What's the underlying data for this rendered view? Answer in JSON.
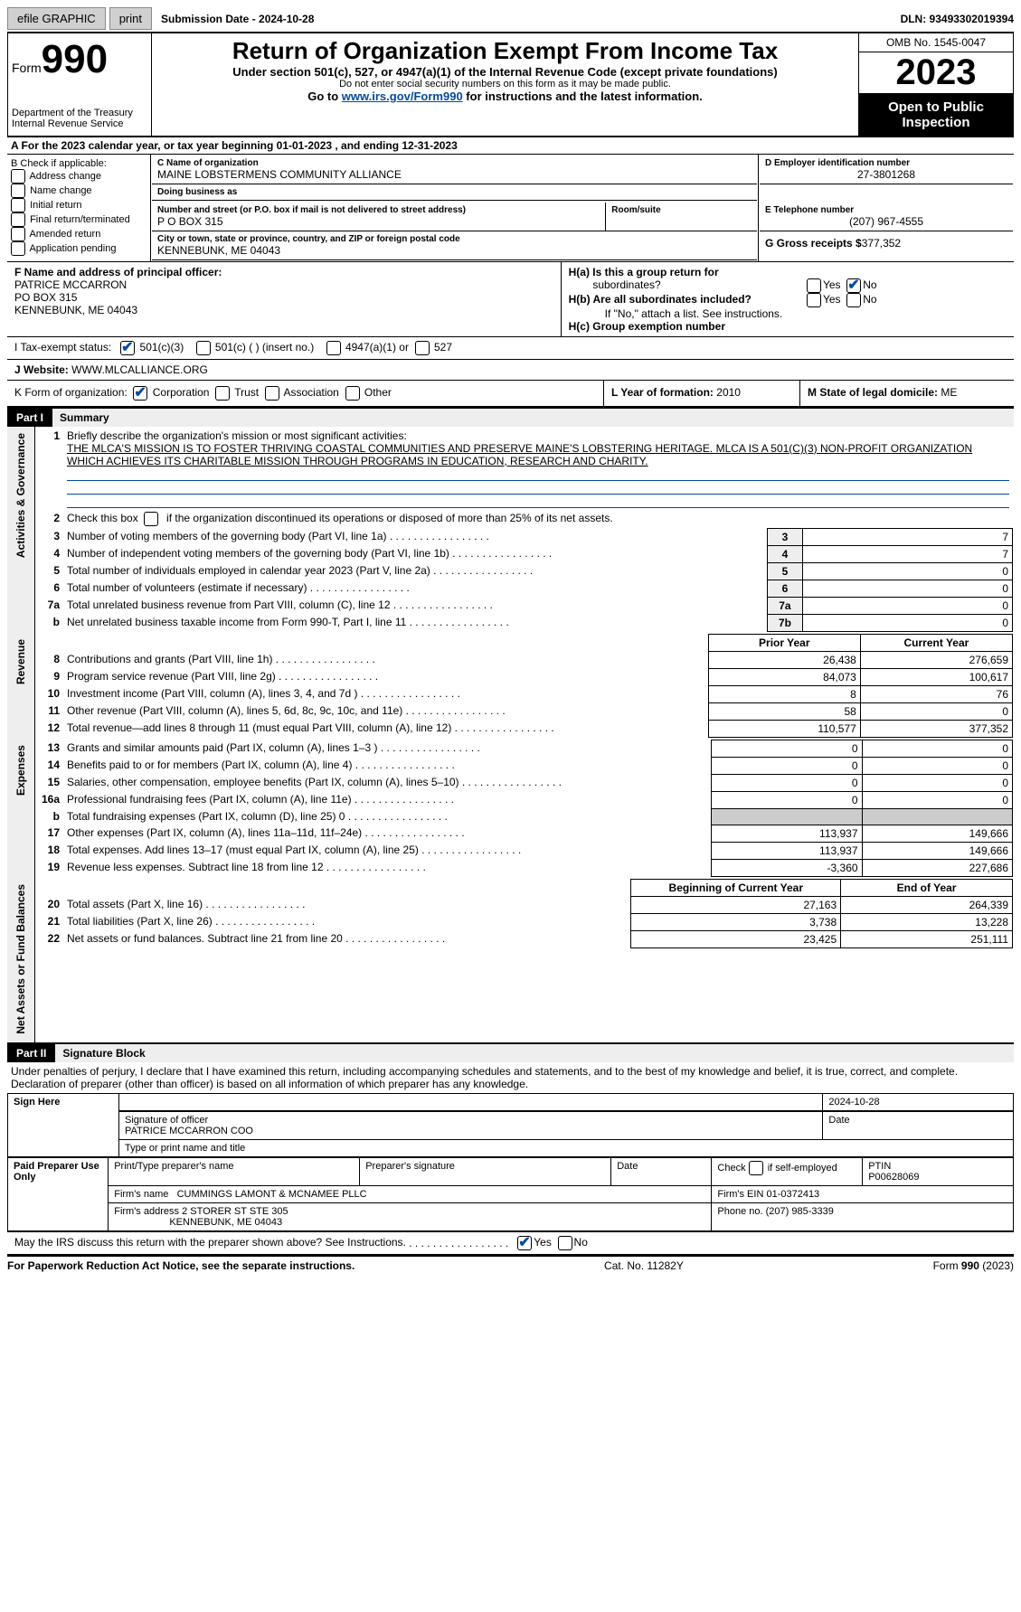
{
  "topbar": {
    "efile": "efile GRAPHIC",
    "print": "print",
    "submission": "Submission Date - 2024-10-28",
    "dln": "DLN: 93493302019394"
  },
  "header": {
    "form_word": "Form",
    "form_num": "990",
    "dept": "Department of the Treasury",
    "irs": "Internal Revenue Service",
    "title": "Return of Organization Exempt From Income Tax",
    "sub1": "Under section 501(c), 527, or 4947(a)(1) of the Internal Revenue Code (except private foundations)",
    "sub2": "Do not enter social security numbers on this form as it may be made public.",
    "sub3_a": "Go to ",
    "sub3_link": "www.irs.gov/Form990",
    "sub3_b": " for instructions and the latest information.",
    "omb": "OMB No. 1545-0047",
    "year": "2023",
    "otpi": "Open to Public Inspection"
  },
  "periodA": "A For the 2023 calendar year, or tax year beginning 01-01-2023   , and ending 12-31-2023",
  "boxB": {
    "intro": "B Check if applicable:",
    "items": [
      "Address change",
      "Name change",
      "Initial return",
      "Final return/terminated",
      "Amended return",
      "Application pending"
    ]
  },
  "boxC": {
    "name_lbl": "C Name of organization",
    "name": "MAINE LOBSTERMENS COMMUNITY ALLIANCE",
    "dba_lbl": "Doing business as",
    "dba": "",
    "street_lbl": "Number and street (or P.O. box if mail is not delivered to street address)",
    "room_lbl": "Room/suite",
    "street": "P O BOX 315",
    "city_lbl": "City or town, state or province, country, and ZIP or foreign postal code",
    "city": "KENNEBUNK, ME  04043"
  },
  "boxD": {
    "ein_lbl": "D Employer identification number",
    "ein": "27-3801268",
    "tel_lbl": "E Telephone number",
    "tel": "(207) 967-4555",
    "gross_lbl": "G Gross receipts $",
    "gross": "377,352"
  },
  "boxF": {
    "lbl": "F Name and address of principal officer:",
    "name": "PATRICE MCCARRON",
    "addr1": "PO BOX 315",
    "addr2": "KENNEBUNK, ME  04043"
  },
  "boxH": {
    "a": "H(a)  Is this a group return for",
    "a2": "subordinates?",
    "b": "H(b)  Are all subordinates included?",
    "bnote": "If \"No,\" attach a list. See instructions.",
    "c": "H(c)  Group exemption number",
    "yes": "Yes",
    "no": "No"
  },
  "boxI": {
    "lbl": "I    Tax-exempt status:",
    "o1": "501(c)(3)",
    "o2": "501(c) (  ) (insert no.)",
    "o3": "4947(a)(1) or",
    "o4": "527"
  },
  "boxJ": {
    "lbl": "J   Website: ",
    "val": "WWW.MLCALLIANCE.ORG"
  },
  "boxK": {
    "lbl": "K Form of organization:",
    "o1": "Corporation",
    "o2": "Trust",
    "o3": "Association",
    "o4": "Other"
  },
  "boxL": {
    "lbl": "L Year of formation:",
    "val": "2010"
  },
  "boxM": {
    "lbl": "M State of legal domicile:",
    "val": "ME"
  },
  "part1": {
    "hdr": "Part I",
    "title": "Summary",
    "tabs": {
      "ag": "Activities & Governance",
      "rev": "Revenue",
      "exp": "Expenses",
      "na": "Net Assets or Fund Balances"
    },
    "l1_lbl": "Briefly describe the organization's mission or most significant activities:",
    "l1_val": "THE MLCA'S MISSION IS TO FOSTER THRIVING COASTAL COMMUNITIES AND PRESERVE MAINE'S LOBSTERING HERITAGE. MLCA IS A 501(C)(3) NON-PROFIT ORGANIZATION WHICH ACHIEVES ITS CHARITABLE MISSION THROUGH PROGRAMS IN EDUCATION, RESEARCH AND CHARITY.",
    "l2": "Check this box       if the organization discontinued its operations or disposed of more than 25% of its net assets.",
    "lines_ag": [
      {
        "n": "3",
        "t": "Number of voting members of the governing body (Part VI, line 1a)",
        "c": "3",
        "v": "7"
      },
      {
        "n": "4",
        "t": "Number of independent voting members of the governing body (Part VI, line 1b)",
        "c": "4",
        "v": "7"
      },
      {
        "n": "5",
        "t": "Total number of individuals employed in calendar year 2023 (Part V, line 2a)",
        "c": "5",
        "v": "0"
      },
      {
        "n": "6",
        "t": "Total number of volunteers (estimate if necessary)",
        "c": "6",
        "v": "0"
      },
      {
        "n": "7a",
        "t": "Total unrelated business revenue from Part VIII, column (C), line 12",
        "c": "7a",
        "v": "0"
      },
      {
        "n": "b",
        "t": "Net unrelated business taxable income from Form 990-T, Part I, line 11",
        "c": "7b",
        "v": "0"
      }
    ],
    "yr_hdr": {
      "prior": "Prior Year",
      "current": "Current Year"
    },
    "lines_rev": [
      {
        "n": "8",
        "t": "Contributions and grants (Part VIII, line 1h)",
        "p": "26,438",
        "c": "276,659"
      },
      {
        "n": "9",
        "t": "Program service revenue (Part VIII, line 2g)",
        "p": "84,073",
        "c": "100,617"
      },
      {
        "n": "10",
        "t": "Investment income (Part VIII, column (A), lines 3, 4, and 7d )",
        "p": "8",
        "c": "76"
      },
      {
        "n": "11",
        "t": "Other revenue (Part VIII, column (A), lines 5, 6d, 8c, 9c, 10c, and 11e)",
        "p": "58",
        "c": "0"
      },
      {
        "n": "12",
        "t": "Total revenue—add lines 8 through 11 (must equal Part VIII, column (A), line 12)",
        "p": "110,577",
        "c": "377,352"
      }
    ],
    "lines_exp": [
      {
        "n": "13",
        "t": "Grants and similar amounts paid (Part IX, column (A), lines 1–3 )",
        "p": "0",
        "c": "0"
      },
      {
        "n": "14",
        "t": "Benefits paid to or for members (Part IX, column (A), line 4)",
        "p": "0",
        "c": "0"
      },
      {
        "n": "15",
        "t": "Salaries, other compensation, employee benefits (Part IX, column (A), lines 5–10)",
        "p": "0",
        "c": "0"
      },
      {
        "n": "16a",
        "t": "Professional fundraising fees (Part IX, column (A), line 11e)",
        "p": "0",
        "c": "0"
      },
      {
        "n": "b",
        "t": "Total fundraising expenses (Part IX, column (D), line 25) 0",
        "p": "",
        "c": "",
        "gray": true
      },
      {
        "n": "17",
        "t": "Other expenses (Part IX, column (A), lines 11a–11d, 11f–24e)",
        "p": "113,937",
        "c": "149,666"
      },
      {
        "n": "18",
        "t": "Total expenses. Add lines 13–17 (must equal Part IX, column (A), line 25)",
        "p": "113,937",
        "c": "149,666"
      },
      {
        "n": "19",
        "t": "Revenue less expenses. Subtract line 18 from line 12",
        "p": "-3,360",
        "c": "227,686"
      }
    ],
    "na_hdr": {
      "begin": "Beginning of Current Year",
      "end": "End of Year"
    },
    "lines_na": [
      {
        "n": "20",
        "t": "Total assets (Part X, line 16)",
        "p": "27,163",
        "c": "264,339"
      },
      {
        "n": "21",
        "t": "Total liabilities (Part X, line 26)",
        "p": "3,738",
        "c": "13,228"
      },
      {
        "n": "22",
        "t": "Net assets or fund balances. Subtract line 21 from line 20",
        "p": "23,425",
        "c": "251,111"
      }
    ]
  },
  "part2": {
    "hdr": "Part II",
    "title": "Signature Block",
    "decl": "Under penalties of perjury, I declare that I have examined this return, including accompanying schedules and statements, and to the best of my knowledge and belief, it is true, correct, and complete. Declaration of preparer (other than officer) is based on all information of which preparer has any knowledge.",
    "sign_here": "Sign Here",
    "sig_officer": "Signature of officer",
    "sig_name": "PATRICE MCCARRON  COO",
    "sig_title_lbl": "Type or print name and title",
    "date_lbl": "Date",
    "date_val": "2024-10-28",
    "paid": "Paid Preparer Use Only",
    "prep_name_lbl": "Print/Type preparer's name",
    "prep_sig_lbl": "Preparer's signature",
    "self_emp": "Check         if self-employed",
    "ptin_lbl": "PTIN",
    "ptin": "P00628069",
    "firm_name_lbl": "Firm's name   ",
    "firm_name": "CUMMINGS LAMONT & MCNAMEE PLLC",
    "firm_ein_lbl": "Firm's EIN  ",
    "firm_ein": "01-0372413",
    "firm_addr_lbl": "Firm's address",
    "firm_addr1": "2 STORER ST STE 305",
    "firm_addr2": "KENNEBUNK, ME  04043",
    "phone_lbl": "Phone no.",
    "phone": "(207) 985-3339",
    "discuss": "May the IRS discuss this return with the preparer shown above? See Instructions.",
    "yes": "Yes",
    "no": "No"
  },
  "footer": {
    "left": "For Paperwork Reduction Act Notice, see the separate instructions.",
    "mid": "Cat. No. 11282Y",
    "right": "Form 990 (2023)"
  }
}
